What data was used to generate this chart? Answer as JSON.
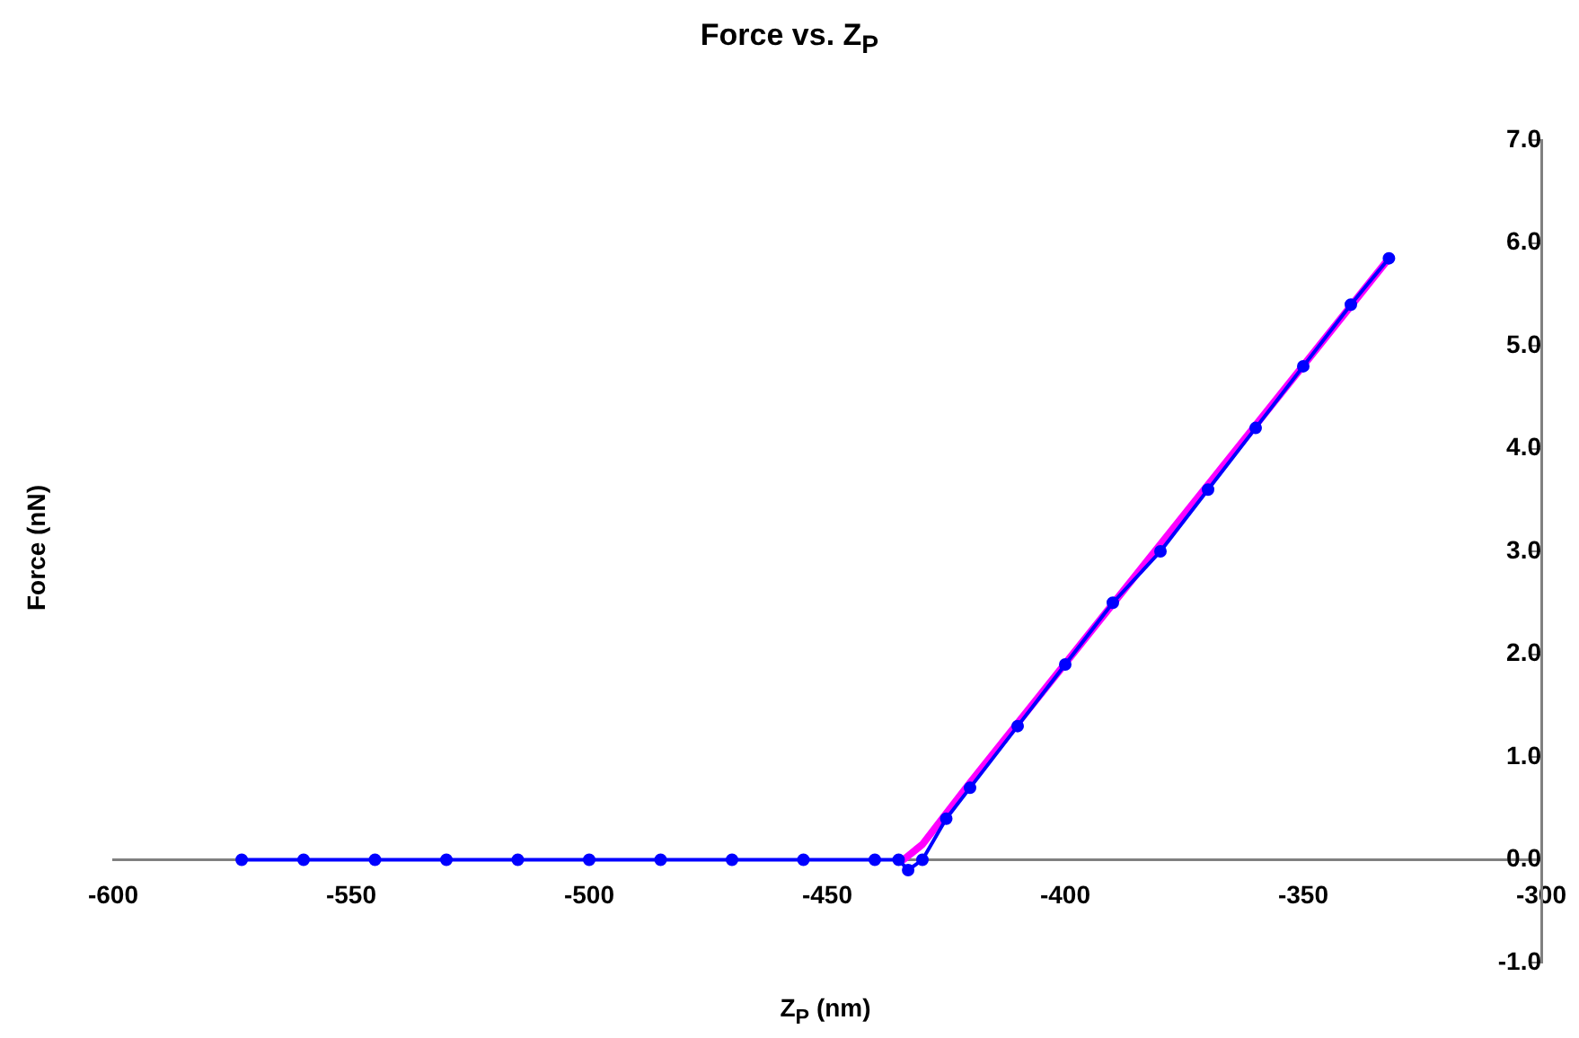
{
  "chart_data": {
    "type": "line",
    "title": "Force vs. Z$_{P}$",
    "xlabel": "Z$_{P}$ (nm)",
    "ylabel": "Force (nN)",
    "xlim": [
      -600,
      -300
    ],
    "xticks": [
      -600,
      -550,
      -500,
      -450,
      -400,
      -350,
      -300
    ],
    "ylim": [
      -1,
      7
    ],
    "yticks": [
      {
        "value": -1,
        "label": "-1.0"
      },
      {
        "value": 0,
        "label": "0.0"
      },
      {
        "value": 1,
        "label": "1.0"
      },
      {
        "value": 2,
        "label": "2.0"
      },
      {
        "value": 3,
        "label": "3.0"
      },
      {
        "value": 4,
        "label": "4.0"
      },
      {
        "value": 5,
        "label": "5.0"
      },
      {
        "value": 6,
        "label": "6.0"
      },
      {
        "value": 7,
        "label": "7.0"
      }
    ],
    "grid": false,
    "legend": false,
    "series": [
      {
        "color": "#0000ff",
        "marker": "circle",
        "x": [
          -573,
          -560,
          -545,
          -530,
          -515,
          -500,
          -485,
          -470,
          -455,
          -440,
          -435,
          -433,
          -430,
          -425,
          -420,
          -410,
          -400,
          -390,
          -380,
          -370,
          -360,
          -350,
          -340,
          -332
        ],
        "values": [
          0,
          0,
          0,
          0,
          0,
          0,
          0,
          0,
          0,
          0,
          0,
          -0.1,
          0,
          0.4,
          0.7,
          1.3,
          1.9,
          2.5,
          3.0,
          3.6,
          4.2,
          4.8,
          5.4,
          5.85
        ]
      },
      {
        "color": "#ff00ff",
        "marker": "none",
        "x": [
          -434,
          -430,
          -425,
          -420,
          -332
        ],
        "values": [
          0,
          0.15,
          0.45,
          0.75,
          5.85
        ]
      }
    ]
  }
}
